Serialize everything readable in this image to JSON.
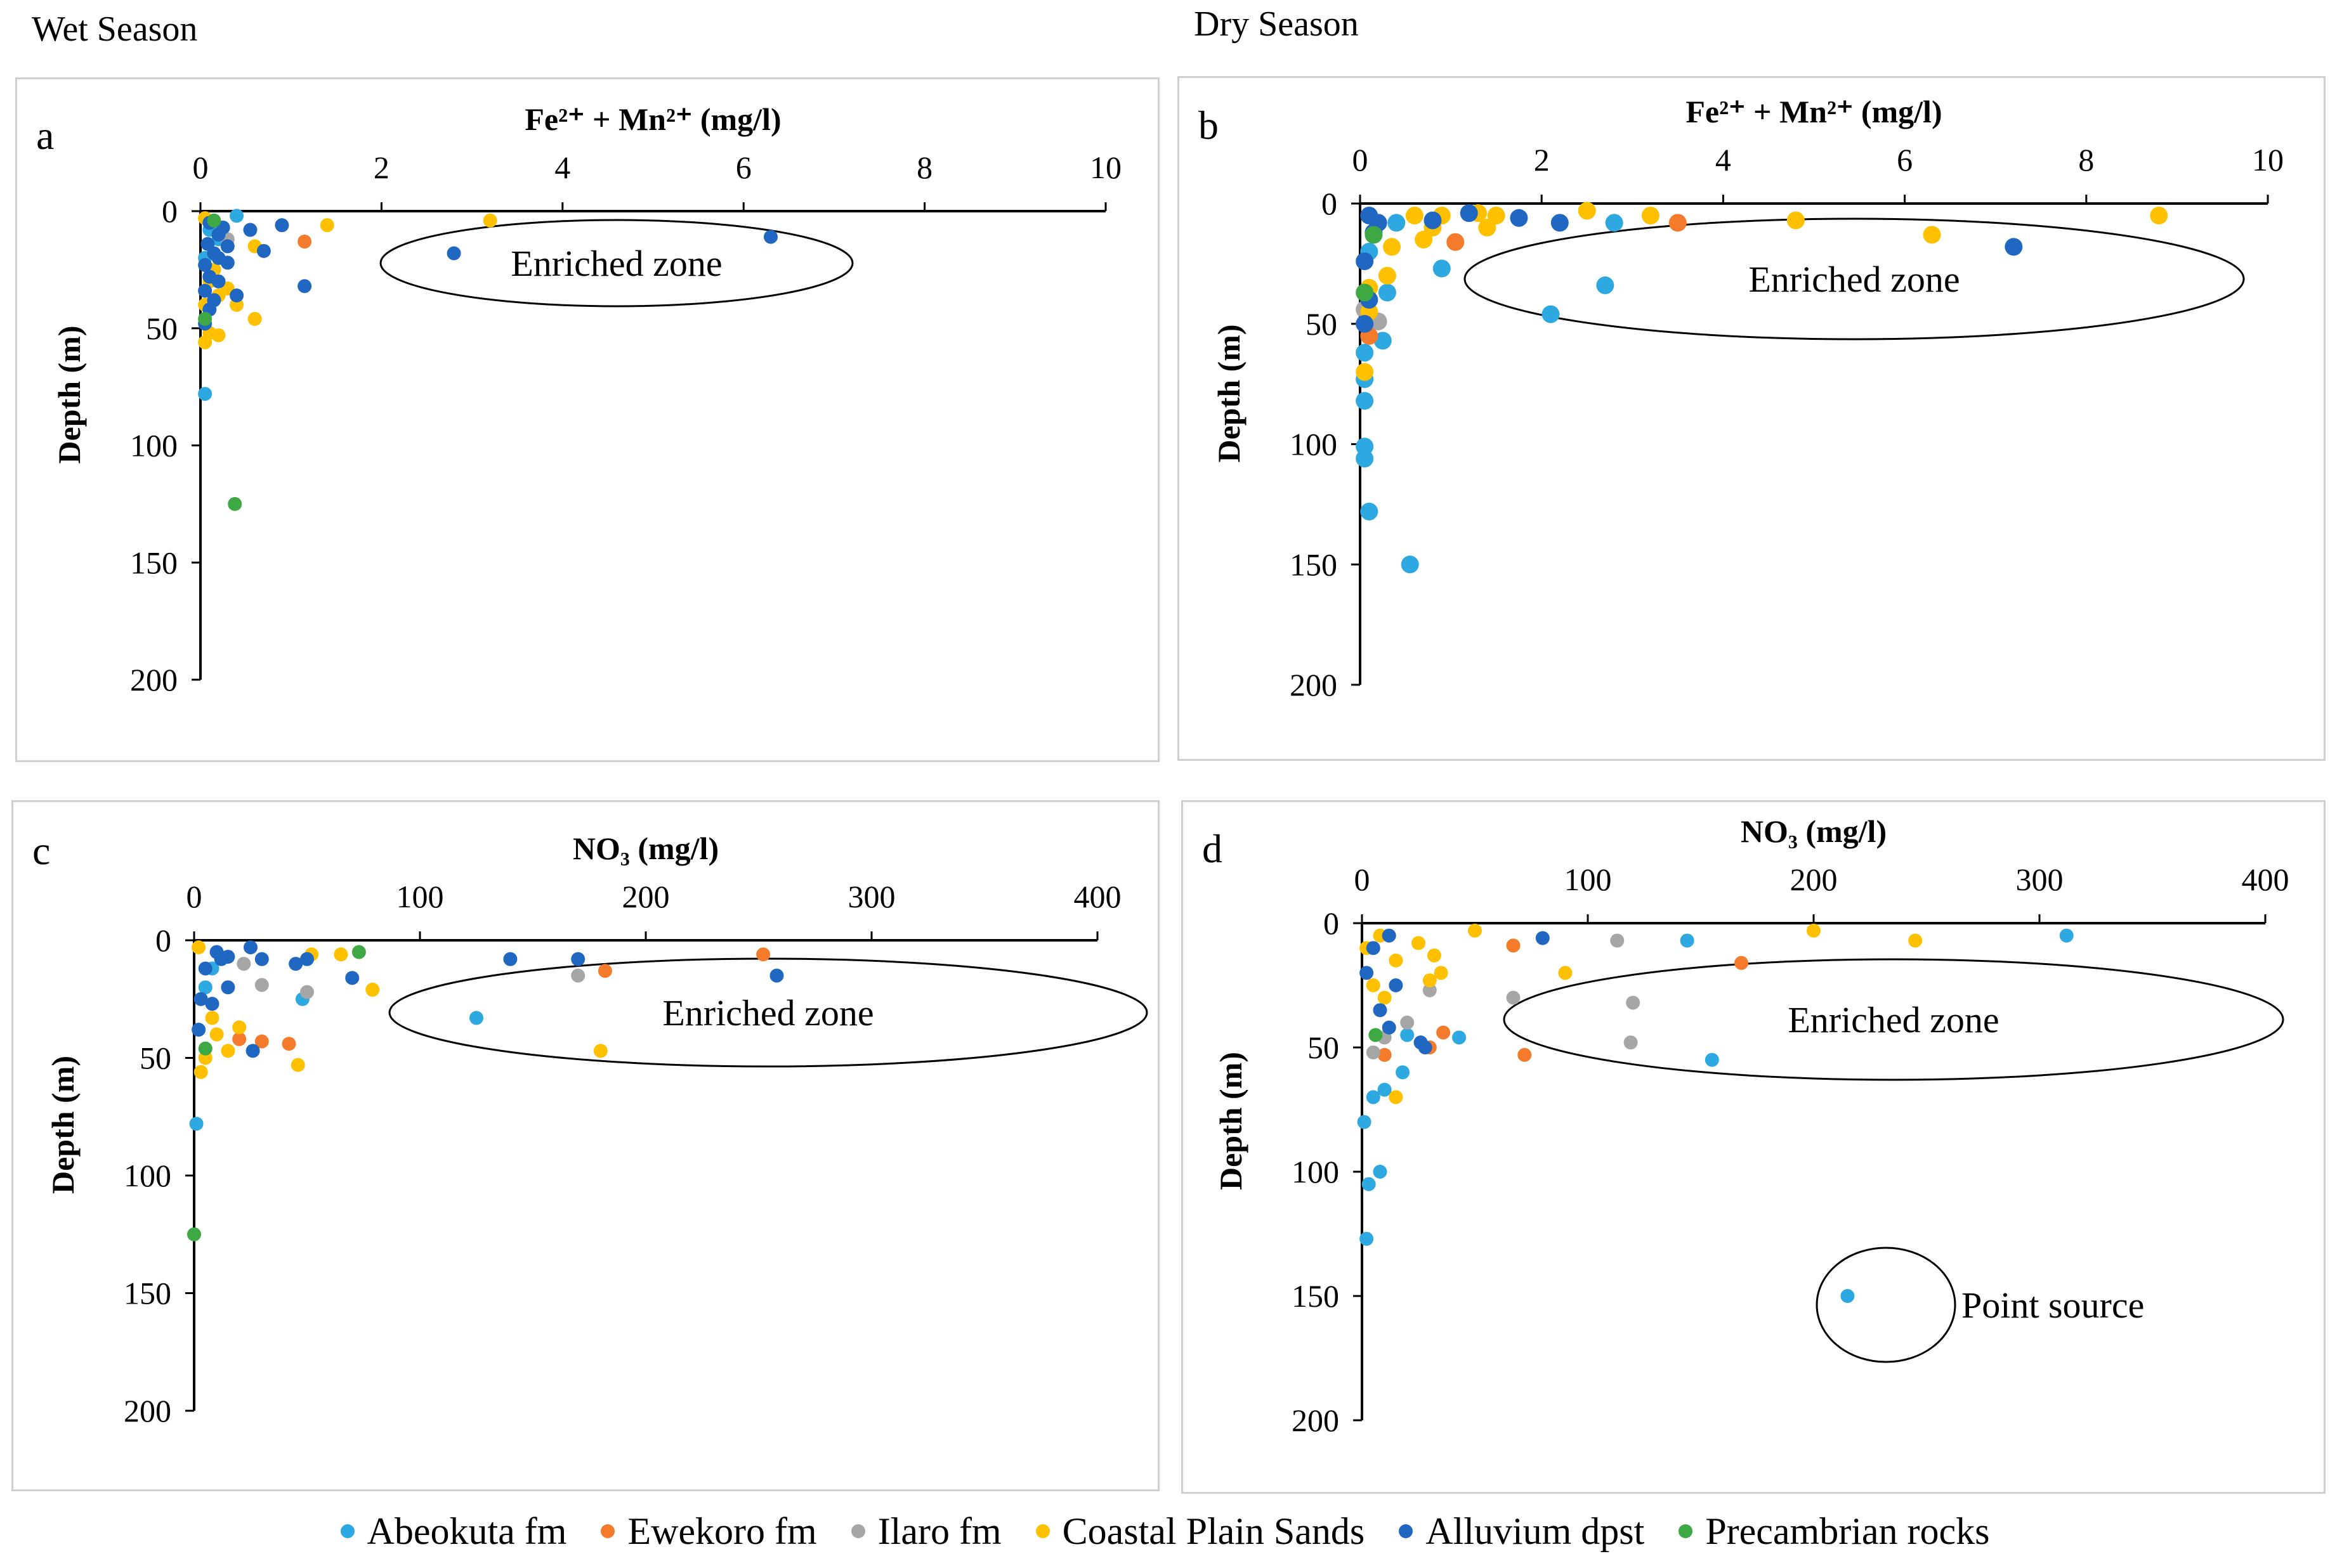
{
  "headers": {
    "wet": "Wet Season",
    "dry": "Dry Season"
  },
  "colors": {
    "Abeokuta fm": "#2ea8e0",
    "Ewekoro fm": "#f47b2c",
    "Ilaro fm": "#a6a6a6",
    "Coastal Plain Sands": "#ffc000",
    "Alluvium dpst": "#1f67c0",
    "Precambrian rocks": "#3ea944"
  },
  "legend": [
    {
      "label": "Abeokuta fm",
      "series": "Abeokuta fm"
    },
    {
      "label": "Ewekoro fm",
      "series": "Ewekoro fm"
    },
    {
      "label": "Ilaro fm",
      "series": "Ilaro fm"
    },
    {
      "label": "Coastal Plain Sands",
      "series": "Coastal Plain Sands"
    },
    {
      "label": "Alluvium dpst",
      "series": "Alluvium dpst"
    },
    {
      "label": "Precambrian rocks",
      "series": "Precambrian rocks"
    }
  ],
  "chart_data": [
    {
      "id": "a",
      "type": "scatter",
      "panel_label": "a",
      "season": "Wet Season",
      "xlabel": "Fe²⁺ + Mn²⁺ (mg/l)",
      "ylabel": "Depth (m)",
      "xlim": [
        0,
        10
      ],
      "ylim": [
        0,
        200
      ],
      "xticks": [
        0,
        2,
        4,
        6,
        8,
        10
      ],
      "yticks": [
        0,
        50,
        100,
        150,
        200
      ],
      "annotations": [
        {
          "text": "Enriched zone",
          "shape": "ellipse"
        }
      ],
      "series": [
        {
          "name": "Abeokuta fm",
          "points": [
            [
              0.05,
              78
            ],
            [
              0.4,
              2
            ],
            [
              0.1,
              8
            ],
            [
              0.2,
              12
            ],
            [
              0.05,
              20
            ]
          ]
        },
        {
          "name": "Ewekoro fm",
          "points": [
            [
              1.15,
              13
            ]
          ]
        },
        {
          "name": "Ilaro fm",
          "points": [
            [
              0.3,
              12
            ]
          ]
        },
        {
          "name": "Coastal Plain Sands",
          "points": [
            [
              0.05,
              3
            ],
            [
              3.2,
              4
            ],
            [
              1.4,
              6
            ],
            [
              0.6,
              15
            ],
            [
              0.1,
              30
            ],
            [
              0.3,
              33
            ],
            [
              0.4,
              40
            ],
            [
              0.6,
              46
            ],
            [
              0.2,
              53
            ],
            [
              0.05,
              56
            ],
            [
              0.1,
              52
            ],
            [
              0.2,
              36
            ],
            [
              0.05,
              40
            ],
            [
              0.15,
              25
            ]
          ]
        },
        {
          "name": "Alluvium dpst",
          "points": [
            [
              6.3,
              11
            ],
            [
              2.8,
              18
            ],
            [
              1.15,
              32
            ],
            [
              0.9,
              6
            ],
            [
              0.55,
              8
            ],
            [
              0.7,
              17
            ],
            [
              0.1,
              5
            ],
            [
              0.2,
              10
            ],
            [
              0.3,
              15
            ],
            [
              0.15,
              18
            ],
            [
              0.05,
              23
            ],
            [
              0.1,
              28
            ],
            [
              0.2,
              30
            ],
            [
              0.05,
              34
            ],
            [
              0.15,
              38
            ],
            [
              0.4,
              36
            ],
            [
              0.3,
              22
            ],
            [
              0.1,
              42
            ],
            [
              0.05,
              48
            ],
            [
              0.2,
              20
            ],
            [
              0.25,
              7
            ],
            [
              0.08,
              14
            ]
          ]
        },
        {
          "name": "Precambrian rocks",
          "points": [
            [
              0.15,
              4
            ],
            [
              0.05,
              46
            ],
            [
              0.38,
              125
            ]
          ]
        }
      ]
    },
    {
      "id": "b",
      "type": "scatter",
      "panel_label": "b",
      "season": "Dry Season",
      "xlabel": "Fe²⁺ + Mn²⁺ (mg/l)",
      "ylabel": "Depth (m)",
      "xlim": [
        0,
        10
      ],
      "ylim": [
        0,
        200
      ],
      "xticks": [
        0,
        2,
        4,
        6,
        8,
        10
      ],
      "yticks": [
        0,
        50,
        100,
        150,
        200
      ],
      "annotations": [
        {
          "text": "Enriched zone",
          "shape": "ellipse"
        }
      ],
      "series": [
        {
          "name": "Abeokuta fm",
          "points": [
            [
              0.55,
              150
            ],
            [
              0.1,
              128
            ],
            [
              0.05,
              106
            ],
            [
              0.05,
              101
            ],
            [
              0.05,
              82
            ],
            [
              0.05,
              73
            ],
            [
              0.25,
              57
            ],
            [
              0.05,
              62
            ],
            [
              2.1,
              46
            ],
            [
              2.7,
              34
            ],
            [
              0.9,
              27
            ],
            [
              2.8,
              8
            ],
            [
              0.4,
              8
            ],
            [
              0.3,
              37
            ],
            [
              0.1,
              20
            ]
          ]
        },
        {
          "name": "Ewekoro fm",
          "points": [
            [
              3.5,
              8
            ],
            [
              1.05,
              16
            ],
            [
              0.1,
              55
            ]
          ]
        },
        {
          "name": "Ilaro fm",
          "points": [
            [
              0.2,
              49
            ],
            [
              0.05,
              44
            ]
          ]
        },
        {
          "name": "Coastal Plain Sands",
          "points": [
            [
              8.8,
              5
            ],
            [
              6.3,
              13
            ],
            [
              4.8,
              7
            ],
            [
              3.2,
              5
            ],
            [
              2.5,
              3
            ],
            [
              1.5,
              5
            ],
            [
              1.4,
              10
            ],
            [
              1.3,
              4
            ],
            [
              0.9,
              5
            ],
            [
              0.6,
              5
            ],
            [
              0.7,
              15
            ],
            [
              0.35,
              18
            ],
            [
              0.3,
              30
            ],
            [
              0.1,
              35
            ],
            [
              0.05,
              70
            ],
            [
              0.1,
              45
            ],
            [
              0.8,
              10
            ]
          ]
        },
        {
          "name": "Alluvium dpst",
          "points": [
            [
              7.2,
              18
            ],
            [
              1.75,
              6
            ],
            [
              2.2,
              8
            ],
            [
              1.2,
              4
            ],
            [
              0.8,
              7
            ],
            [
              0.1,
              5
            ],
            [
              0.15,
              12
            ],
            [
              0.05,
              24
            ],
            [
              0.1,
              40
            ],
            [
              0.05,
              50
            ],
            [
              0.2,
              8
            ]
          ]
        },
        {
          "name": "Precambrian rocks",
          "points": [
            [
              0.05,
              37
            ],
            [
              0.15,
              13
            ]
          ]
        }
      ]
    },
    {
      "id": "c",
      "type": "scatter",
      "panel_label": "c",
      "season": "Wet Season",
      "xlabel": "NO₃ (mg/l)",
      "ylabel": "Depth (m)",
      "xlim": [
        0,
        400
      ],
      "ylim": [
        0,
        200
      ],
      "xticks": [
        0,
        100,
        200,
        300,
        400
      ],
      "yticks": [
        0,
        50,
        100,
        150,
        200
      ],
      "annotations": [
        {
          "text": "Enriched zone",
          "shape": "ellipse"
        }
      ],
      "series": [
        {
          "name": "Abeokuta fm",
          "points": [
            [
              1,
              78
            ],
            [
              125,
              33
            ],
            [
              48,
              25
            ],
            [
              5,
              20
            ],
            [
              8,
              12
            ]
          ]
        },
        {
          "name": "Ewekoro fm",
          "points": [
            [
              252,
              6
            ],
            [
              182,
              13
            ],
            [
              42,
              44
            ],
            [
              30,
              43
            ],
            [
              20,
              42
            ]
          ]
        },
        {
          "name": "Ilaro fm",
          "points": [
            [
              170,
              15
            ],
            [
              30,
              19
            ],
            [
              22,
              10
            ],
            [
              50,
              22
            ]
          ]
        },
        {
          "name": "Coastal Plain Sands",
          "points": [
            [
              2,
              3
            ],
            [
              52,
              6
            ],
            [
              65,
              6
            ],
            [
              79,
              21
            ],
            [
              20,
              37
            ],
            [
              15,
              47
            ],
            [
              46,
              53
            ],
            [
              3,
              56
            ],
            [
              5,
              50
            ],
            [
              10,
              40
            ],
            [
              8,
              33
            ],
            [
              180,
              47
            ]
          ]
        },
        {
          "name": "Alluvium dpst",
          "points": [
            [
              258,
              15
            ],
            [
              170,
              8
            ],
            [
              140,
              8
            ],
            [
              70,
              16
            ],
            [
              25,
              3
            ],
            [
              30,
              8
            ],
            [
              50,
              8
            ],
            [
              45,
              10
            ],
            [
              15,
              7
            ],
            [
              10,
              5
            ],
            [
              5,
              12
            ],
            [
              3,
              25
            ],
            [
              2,
              38
            ],
            [
              8,
              27
            ],
            [
              15,
              20
            ],
            [
              26,
              47
            ],
            [
              12,
              8
            ]
          ]
        },
        {
          "name": "Precambrian rocks",
          "points": [
            [
              73,
              5
            ],
            [
              5,
              46
            ],
            [
              0,
              125
            ]
          ]
        }
      ]
    },
    {
      "id": "d",
      "type": "scatter",
      "panel_label": "d",
      "season": "Dry Season",
      "xlabel": "NO₃ (mg/l)",
      "ylabel": "Depth (m)",
      "xlim": [
        0,
        400
      ],
      "ylim": [
        0,
        200
      ],
      "xticks": [
        0,
        100,
        200,
        300,
        400
      ],
      "yticks": [
        0,
        50,
        100,
        150,
        200
      ],
      "annotations": [
        {
          "text": "Enriched zone",
          "shape": "ellipse"
        },
        {
          "text": "Point source",
          "shape": "ellipse"
        }
      ],
      "series": [
        {
          "name": "Abeokuta fm",
          "points": [
            [
              2,
              127
            ],
            [
              3,
              105
            ],
            [
              8,
              100
            ],
            [
              1,
              80
            ],
            [
              5,
              70
            ],
            [
              10,
              67
            ],
            [
              18,
              60
            ],
            [
              155,
              55
            ],
            [
              144,
              7
            ],
            [
              312,
              5
            ],
            [
              215,
              150
            ],
            [
              43,
              46
            ],
            [
              20,
              45
            ]
          ]
        },
        {
          "name": "Ewekoro fm",
          "points": [
            [
              67,
              9
            ],
            [
              168,
              16
            ],
            [
              72,
              53
            ],
            [
              36,
              44
            ],
            [
              30,
              50
            ],
            [
              10,
              53
            ]
          ]
        },
        {
          "name": "Ilaro fm",
          "points": [
            [
              113,
              7
            ],
            [
              120,
              32
            ],
            [
              119,
              48
            ],
            [
              67,
              30
            ],
            [
              30,
              27
            ],
            [
              20,
              40
            ],
            [
              5,
              52
            ],
            [
              10,
              46
            ]
          ]
        },
        {
          "name": "Coastal Plain Sands",
          "points": [
            [
              200,
              3
            ],
            [
              245,
              7
            ],
            [
              50,
              3
            ],
            [
              90,
              20
            ],
            [
              30,
              23
            ],
            [
              35,
              20
            ],
            [
              32,
              13
            ],
            [
              15,
              15
            ],
            [
              10,
              30
            ],
            [
              5,
              25
            ],
            [
              15,
              70
            ],
            [
              2,
              10
            ],
            [
              8,
              5
            ],
            [
              25,
              8
            ]
          ]
        },
        {
          "name": "Alluvium dpst",
          "points": [
            [
              80,
              6
            ],
            [
              15,
              25
            ],
            [
              8,
              35
            ],
            [
              12,
              42
            ],
            [
              26,
              48
            ],
            [
              2,
              20
            ],
            [
              5,
              10
            ],
            [
              12,
              5
            ],
            [
              28,
              50
            ]
          ]
        },
        {
          "name": "Precambrian rocks",
          "points": [
            [
              6,
              45
            ]
          ]
        }
      ]
    }
  ]
}
